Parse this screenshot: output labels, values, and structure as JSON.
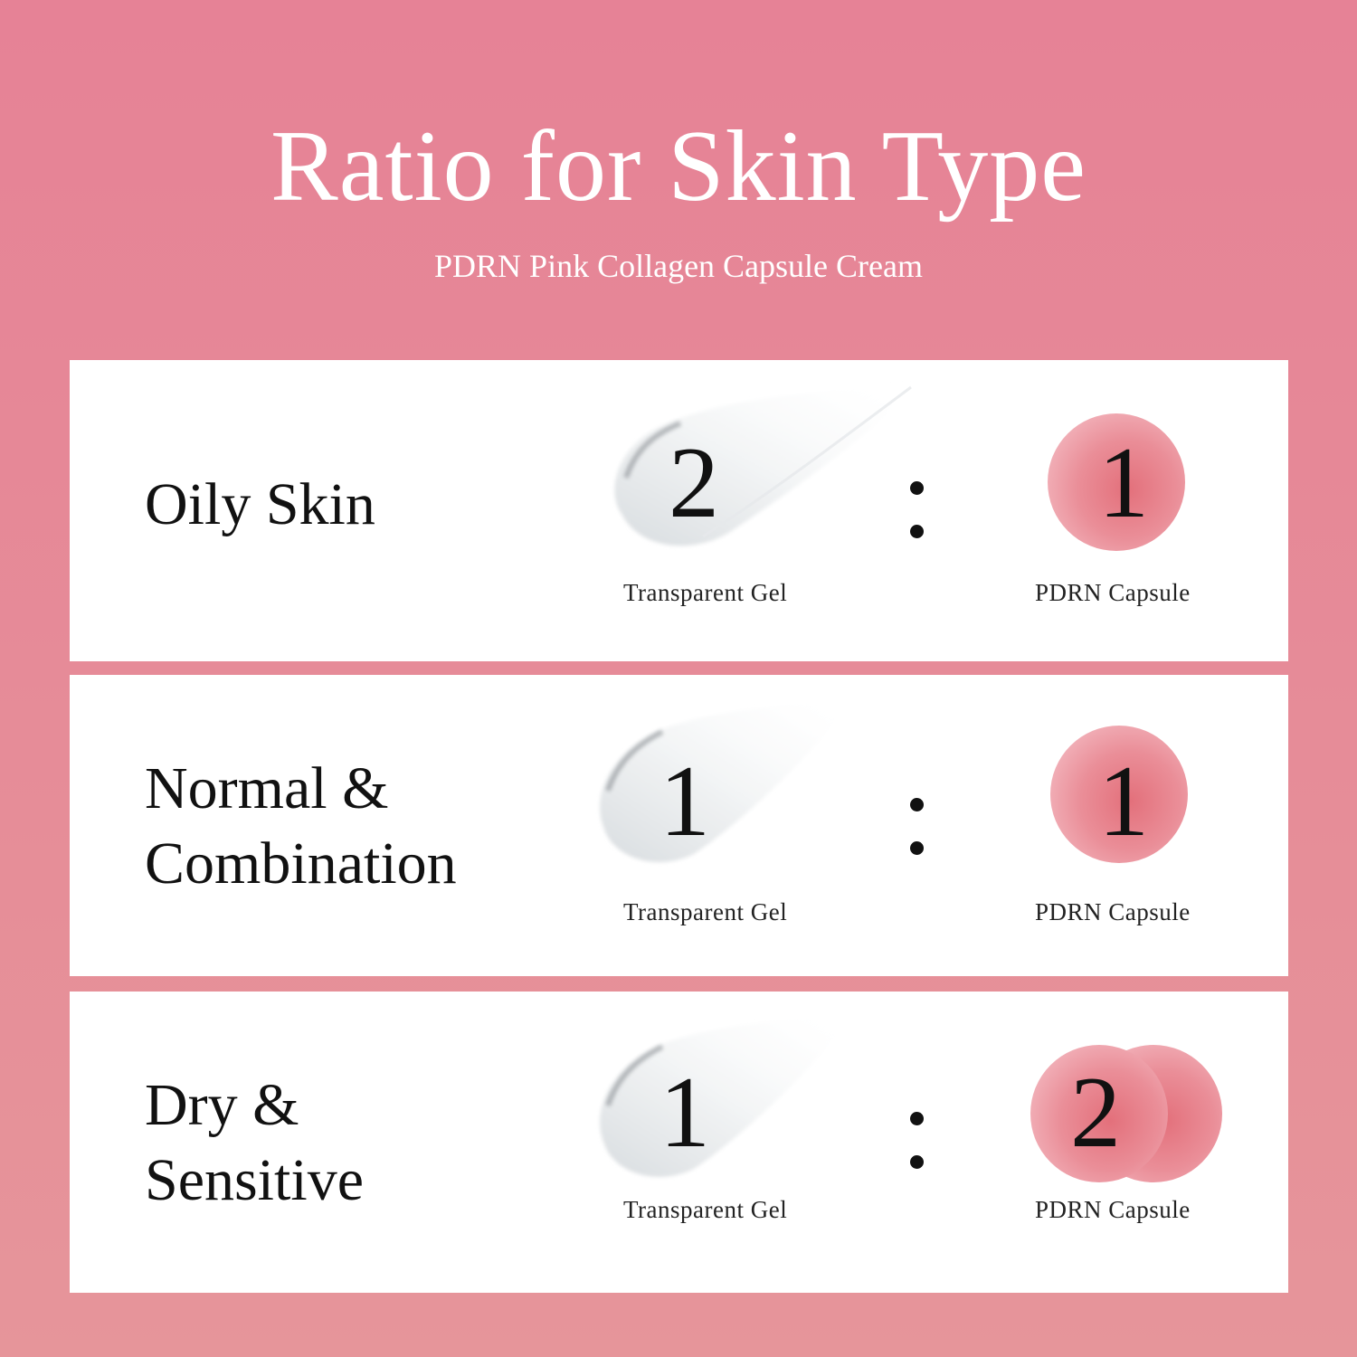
{
  "header": {
    "title": "Ratio for Skin Type",
    "subtitle": "PDRN Pink Collagen Capsule Cream"
  },
  "colors": {
    "background": "#e6899a",
    "card": "#ffffff",
    "capsule": "#e3707b"
  },
  "rows": [
    {
      "skin_line1": "Oily Skin",
      "skin_line2": "",
      "gel_ratio": "2",
      "capsule_ratio": "1",
      "gel_label": "Transparent Gel",
      "capsule_label": "PDRN Capsule",
      "capsule_icon_count": 1
    },
    {
      "skin_line1": "Normal &",
      "skin_line2": "Combination",
      "gel_ratio": "1",
      "capsule_ratio": "1",
      "gel_label": "Transparent Gel",
      "capsule_label": "PDRN Capsule",
      "capsule_icon_count": 1
    },
    {
      "skin_line1": "Dry &",
      "skin_line2": "Sensitive",
      "gel_ratio": "1",
      "capsule_ratio": "2",
      "gel_label": "Transparent Gel",
      "capsule_label": "PDRN Capsule",
      "capsule_icon_count": 2
    }
  ]
}
